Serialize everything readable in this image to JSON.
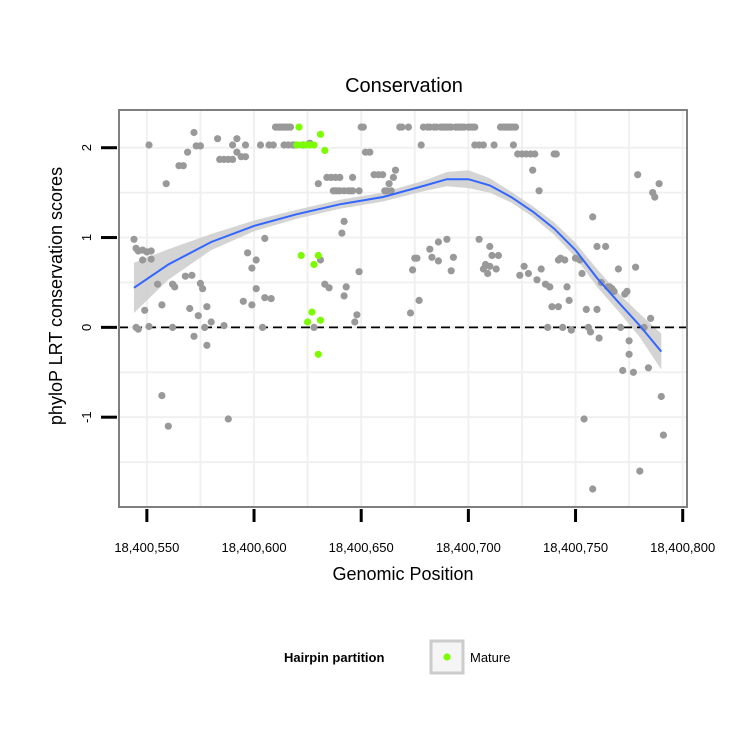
{
  "chart_data": {
    "type": "scatter",
    "title": "Conservation",
    "xlabel": "Genomic Position",
    "ylabel": "phyloP LRT conservation scores",
    "xlim": [
      18400537,
      18400802
    ],
    "ylim": [
      -2.0,
      2.42
    ],
    "x_ticks": [
      18400550,
      18400600,
      18400650,
      18400700,
      18400750,
      18400800
    ],
    "x_tick_labels": [
      "18,400,550",
      "18,400,600",
      "18,400,650",
      "18,400,700",
      "18,400,750",
      "18,400,800"
    ],
    "y_ticks": [
      -1,
      0,
      1,
      2
    ],
    "y_tick_labels": [
      "-1",
      "0",
      "1",
      "2"
    ],
    "grid": true,
    "reference_line": {
      "y": 0,
      "style": "dashed"
    },
    "legend": {
      "title": "Hairpin partition",
      "position": "bottom",
      "entries": [
        "Mature"
      ]
    },
    "colors": {
      "background": "#ffffff",
      "grid": "#f0f0f0",
      "points_other": "#999999",
      "points_mature": "#7cfc00",
      "smooth_line": "#3366ff",
      "smooth_band": "#cccccc",
      "frame": "#7f7f7f"
    },
    "series": [
      {
        "name": "",
        "points": [
          [
            18400544,
            0.98
          ],
          [
            18400545,
            0.88
          ],
          [
            18400546,
            0.85
          ],
          [
            18400548,
            0.86
          ],
          [
            18400550,
            0.84
          ],
          [
            18400552,
            0.85
          ],
          [
            18400552,
            0.76
          ],
          [
            18400548,
            0.75
          ],
          [
            18400545,
            0.0
          ],
          [
            18400546,
            -0.02
          ],
          [
            18400551,
            0.01
          ],
          [
            18400549,
            0.19
          ],
          [
            18400551,
            2.03
          ],
          [
            18400555,
            0.48
          ],
          [
            18400557,
            0.25
          ],
          [
            18400557,
            -0.76
          ],
          [
            18400559,
            1.6
          ],
          [
            18400560,
            -1.1
          ],
          [
            18400562,
            0.48
          ],
          [
            18400562,
            0.0
          ],
          [
            18400563,
            0.45
          ],
          [
            18400565,
            1.8
          ],
          [
            18400567,
            1.8
          ],
          [
            18400569,
            1.95
          ],
          [
            18400572,
            2.17
          ],
          [
            18400571,
            0.58
          ],
          [
            18400568,
            0.57
          ],
          [
            18400573,
            2.02
          ],
          [
            18400575,
            2.02
          ],
          [
            18400575,
            0.49
          ],
          [
            18400576,
            0.43
          ],
          [
            18400578,
            0.23
          ],
          [
            18400570,
            0.21
          ],
          [
            18400574,
            0.13
          ],
          [
            18400572,
            -0.1
          ],
          [
            18400577,
            0.0
          ],
          [
            18400578,
            -0.2
          ],
          [
            18400580,
            0.06
          ],
          [
            18400583,
            2.1
          ],
          [
            18400584,
            1.87
          ],
          [
            18400586,
            1.87
          ],
          [
            18400586,
            0.02
          ],
          [
            18400588,
            1.87
          ],
          [
            18400588,
            -1.02
          ],
          [
            18400590,
            1.87
          ],
          [
            18400590,
            2.03
          ],
          [
            18400592,
            2.1
          ],
          [
            18400592,
            1.95
          ],
          [
            18400594,
            1.9
          ],
          [
            18400596,
            2.03
          ],
          [
            18400595,
            0.29
          ],
          [
            18400596,
            1.9
          ],
          [
            18400597,
            0.83
          ],
          [
            18400599,
            0.25
          ],
          [
            18400599,
            0.66
          ],
          [
            18400601,
            0.75
          ],
          [
            18400601,
            0.43
          ],
          [
            18400603,
            2.03
          ],
          [
            18400604,
            0.0
          ],
          [
            18400605,
            0.33
          ],
          [
            18400605,
            0.99
          ],
          [
            18400607,
            2.03
          ],
          [
            18400609,
            2.03
          ],
          [
            18400608,
            0.32
          ],
          [
            18400610,
            2.23
          ],
          [
            18400611,
            2.23
          ],
          [
            18400612,
            2.23
          ],
          [
            18400613,
            2.23
          ],
          [
            18400614,
            2.23
          ],
          [
            18400615,
            2.23
          ],
          [
            18400616,
            2.23
          ],
          [
            18400617,
            2.23
          ],
          [
            18400614,
            2.03
          ],
          [
            18400616,
            2.03
          ],
          [
            18400618,
            2.03
          ],
          [
            18400619,
            2.03
          ],
          [
            18400620,
            2.03
          ],
          [
            18400623,
            2.03
          ],
          [
            18400626,
            2.05
          ],
          [
            18400628,
            0.0
          ],
          [
            18400630,
            1.6
          ],
          [
            18400634,
            1.67
          ],
          [
            18400636,
            1.67
          ],
          [
            18400638,
            1.67
          ],
          [
            18400640,
            1.67
          ],
          [
            18400631,
            0.75
          ],
          [
            18400633,
            0.48
          ],
          [
            18400635,
            0.44
          ],
          [
            18400637,
            1.52
          ],
          [
            18400638,
            1.52
          ],
          [
            18400639,
            1.52
          ],
          [
            18400640,
            1.52
          ],
          [
            18400642,
            1.52
          ],
          [
            18400642,
            1.18
          ],
          [
            18400641,
            1.05
          ],
          [
            18400642,
            0.35
          ],
          [
            18400643,
            0.45
          ],
          [
            18400644,
            1.52
          ],
          [
            18400645,
            1.52
          ],
          [
            18400646,
            1.52
          ],
          [
            18400646,
            1.67
          ],
          [
            18400647,
            0.06
          ],
          [
            18400648,
            0.14
          ],
          [
            18400649,
            1.52
          ],
          [
            18400649,
            0.62
          ],
          [
            18400650,
            2.23
          ],
          [
            18400651,
            2.23
          ],
          [
            18400652,
            1.95
          ],
          [
            18400654,
            1.95
          ],
          [
            18400656,
            1.7
          ],
          [
            18400658,
            1.7
          ],
          [
            18400660,
            1.7
          ],
          [
            18400661,
            1.52
          ],
          [
            18400662,
            1.52
          ],
          [
            18400663,
            1.6
          ],
          [
            18400664,
            1.52
          ],
          [
            18400665,
            1.67
          ],
          [
            18400666,
            1.75
          ],
          [
            18400668,
            2.23
          ],
          [
            18400669,
            2.23
          ],
          [
            18400672,
            2.23
          ],
          [
            18400673,
            0.16
          ],
          [
            18400674,
            0.64
          ],
          [
            18400675,
            0.77
          ],
          [
            18400676,
            0.77
          ],
          [
            18400677,
            0.3
          ],
          [
            18400678,
            2.03
          ],
          [
            18400679,
            2.23
          ],
          [
            18400681,
            2.23
          ],
          [
            18400682,
            2.23
          ],
          [
            18400682,
            0.87
          ],
          [
            18400683,
            0.78
          ],
          [
            18400684,
            2.23
          ],
          [
            18400685,
            2.23
          ],
          [
            18400686,
            0.74
          ],
          [
            18400686,
            0.95
          ],
          [
            18400687,
            2.23
          ],
          [
            18400688,
            2.23
          ],
          [
            18400689,
            2.23
          ],
          [
            18400690,
            2.23
          ],
          [
            18400691,
            2.23
          ],
          [
            18400692,
            2.23
          ],
          [
            18400690,
            0.98
          ],
          [
            18400692,
            0.63
          ],
          [
            18400693,
            0.78
          ],
          [
            18400694,
            2.23
          ],
          [
            18400695,
            2.23
          ],
          [
            18400696,
            2.23
          ],
          [
            18400697,
            2.23
          ],
          [
            18400698,
            2.23
          ],
          [
            18400700,
            2.23
          ],
          [
            18400701,
            2.23
          ],
          [
            18400702,
            2.23
          ],
          [
            18400703,
            2.23
          ],
          [
            18400703,
            2.03
          ],
          [
            18400705,
            2.03
          ],
          [
            18400705,
            0.98
          ],
          [
            18400707,
            2.03
          ],
          [
            18400707,
            0.65
          ],
          [
            18400708,
            0.7
          ],
          [
            18400709,
            0.6
          ],
          [
            18400710,
            0.68
          ],
          [
            18400710,
            0.9
          ],
          [
            18400711,
            0.8
          ],
          [
            18400712,
            2.03
          ],
          [
            18400713,
            0.65
          ],
          [
            18400714,
            0.8
          ],
          [
            18400715,
            2.23
          ],
          [
            18400716,
            2.23
          ],
          [
            18400717,
            2.23
          ],
          [
            18400718,
            2.23
          ],
          [
            18400719,
            2.23
          ],
          [
            18400720,
            2.23
          ],
          [
            18400721,
            2.23
          ],
          [
            18400722,
            2.23
          ],
          [
            18400721,
            2.03
          ],
          [
            18400723,
            1.93
          ],
          [
            18400725,
            1.93
          ],
          [
            18400727,
            1.93
          ],
          [
            18400729,
            1.93
          ],
          [
            18400731,
            1.93
          ],
          [
            18400724,
            0.58
          ],
          [
            18400726,
            0.68
          ],
          [
            18400728,
            0.6
          ],
          [
            18400730,
            1.75
          ],
          [
            18400732,
            0.53
          ],
          [
            18400733,
            1.52
          ],
          [
            18400734,
            0.65
          ],
          [
            18400736,
            0.48
          ],
          [
            18400737,
            0.0
          ],
          [
            18400738,
            0.45
          ],
          [
            18400739,
            0.23
          ],
          [
            18400740,
            1.93
          ],
          [
            18400741,
            1.93
          ],
          [
            18400742,
            0.75
          ],
          [
            18400742,
            0.23
          ],
          [
            18400743,
            0.77
          ],
          [
            18400744,
            0.0
          ],
          [
            18400745,
            0.75
          ],
          [
            18400746,
            0.45
          ],
          [
            18400747,
            0.3
          ],
          [
            18400748,
            -0.03
          ],
          [
            18400750,
            0.77
          ],
          [
            18400752,
            0.75
          ],
          [
            18400753,
            0.6
          ],
          [
            18400754,
            -1.02
          ],
          [
            18400755,
            0.2
          ],
          [
            18400756,
            0.0
          ],
          [
            18400757,
            -0.05
          ],
          [
            18400758,
            -1.8
          ],
          [
            18400758,
            1.23
          ],
          [
            18400760,
            0.9
          ],
          [
            18400760,
            0.2
          ],
          [
            18400761,
            -0.12
          ],
          [
            18400762,
            0.5
          ],
          [
            18400764,
            0.9
          ],
          [
            18400765,
            0.45
          ],
          [
            18400766,
            0.45
          ],
          [
            18400767,
            0.43
          ],
          [
            18400768,
            0.4
          ],
          [
            18400770,
            0.65
          ],
          [
            18400771,
            0.0
          ],
          [
            18400772,
            -0.48
          ],
          [
            18400773,
            0.37
          ],
          [
            18400774,
            0.4
          ],
          [
            18400775,
            -0.15
          ],
          [
            18400775,
            -0.3
          ],
          [
            18400777,
            -0.5
          ],
          [
            18400778,
            0.67
          ],
          [
            18400779,
            1.7
          ],
          [
            18400780,
            -1.6
          ],
          [
            18400782,
            0.0
          ],
          [
            18400784,
            -0.45
          ],
          [
            18400785,
            0.1
          ],
          [
            18400786,
            1.5
          ],
          [
            18400787,
            1.45
          ],
          [
            18400789,
            1.6
          ],
          [
            18400790,
            -0.77
          ],
          [
            18400791,
            -1.2
          ]
        ]
      },
      {
        "name": "Mature",
        "points": [
          [
            18400621,
            2.23
          ],
          [
            18400620,
            2.03
          ],
          [
            18400622,
            2.03
          ],
          [
            18400624,
            2.03
          ],
          [
            18400626,
            2.03
          ],
          [
            18400628,
            2.03
          ],
          [
            18400631,
            2.15
          ],
          [
            18400633,
            1.97
          ],
          [
            18400622,
            0.8
          ],
          [
            18400625,
            0.06
          ],
          [
            18400627,
            0.17
          ],
          [
            18400628,
            0.7
          ],
          [
            18400630,
            0.8
          ],
          [
            18400631,
            0.08
          ],
          [
            18400630,
            -0.3
          ]
        ]
      }
    ],
    "smooth": {
      "x": [
        18400544,
        18400560,
        18400580,
        18400600,
        18400620,
        18400640,
        18400660,
        18400680,
        18400690,
        18400700,
        18400710,
        18400720,
        18400730,
        18400740,
        18400750,
        18400760,
        18400770,
        18400780,
        18400790
      ],
      "y": [
        0.44,
        0.7,
        0.95,
        1.13,
        1.26,
        1.37,
        1.45,
        1.58,
        1.65,
        1.65,
        1.58,
        1.45,
        1.29,
        1.1,
        0.86,
        0.55,
        0.28,
        0.02,
        -0.27
      ],
      "se": [
        0.28,
        0.17,
        0.09,
        0.06,
        0.05,
        0.05,
        0.05,
        0.06,
        0.08,
        0.1,
        0.08,
        0.06,
        0.06,
        0.07,
        0.08,
        0.1,
        0.1,
        0.13,
        0.2
      ]
    }
  }
}
